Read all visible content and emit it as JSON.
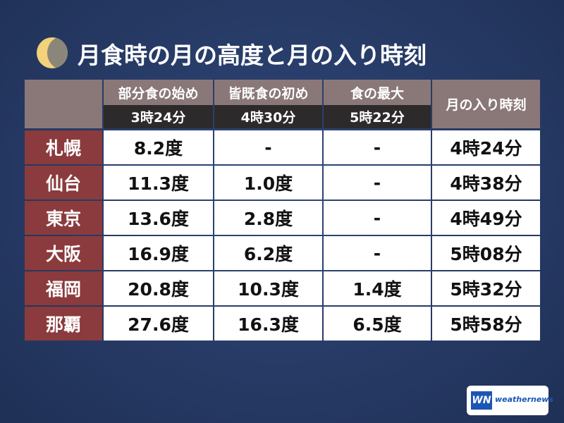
{
  "header": {
    "title": "月食時の月の高度と月の入り時刻"
  },
  "table": {
    "columns": [
      {
        "label": "部分食の始め",
        "time": "3時24分"
      },
      {
        "label": "皆既食の初め",
        "time": "4時30分"
      },
      {
        "label": "食の最大",
        "time": "5時22分"
      },
      {
        "label": "月の入り時刻"
      }
    ],
    "rows": [
      {
        "city": "札幌",
        "values": [
          "8.2度",
          "-",
          "-",
          "4時24分"
        ]
      },
      {
        "city": "仙台",
        "values": [
          "11.3度",
          "1.0度",
          "-",
          "4時38分"
        ]
      },
      {
        "city": "東京",
        "values": [
          "13.6度",
          "2.8度",
          "-",
          "4時49分"
        ]
      },
      {
        "city": "大阪",
        "values": [
          "16.9度",
          "6.2度",
          "-",
          "5時08分"
        ]
      },
      {
        "city": "福岡",
        "values": [
          "20.8度",
          "10.3度",
          "1.4度",
          "5時32分"
        ]
      },
      {
        "city": "那覇",
        "values": [
          "27.6度",
          "16.3度",
          "6.5度",
          "5時58分"
        ]
      }
    ]
  },
  "logo": {
    "mark": "WN",
    "text": "weathernews"
  }
}
